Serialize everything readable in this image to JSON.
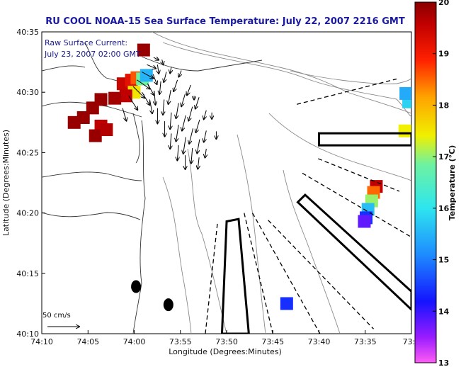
{
  "chart_data": {
    "type": "heatmap",
    "title": "RU COOL  NOAA-15  Sea Surface Temperature:  July 22, 2007 2216 GMT",
    "title_color": "#1a1aa0",
    "xlabel": "Longitude (Degrees:Minutes)",
    "ylabel": "Latitude (Degrees:Minutes)",
    "xlim": [
      -74.1667,
      -73.5
    ],
    "ylim": [
      40.1667,
      40.5833
    ],
    "x_ticks": [
      {
        "value": -74.1667,
        "label": "74:10"
      },
      {
        "value": -74.0833,
        "label": "74:05"
      },
      {
        "value": -74.0,
        "label": "74:00"
      },
      {
        "value": -73.9167,
        "label": "73:55"
      },
      {
        "value": -73.8333,
        "label": "73:50"
      },
      {
        "value": -73.75,
        "label": "73:45"
      },
      {
        "value": -73.6667,
        "label": "73:40"
      },
      {
        "value": -73.5833,
        "label": "73:35"
      },
      {
        "value": -73.5,
        "label": "73:3"
      }
    ],
    "y_ticks": [
      {
        "value": 40.1667,
        "label": "40:10"
      },
      {
        "value": 40.25,
        "label": "40:15"
      },
      {
        "value": 40.3333,
        "label": "40:20"
      },
      {
        "value": 40.4167,
        "label": "40:25"
      },
      {
        "value": 40.5,
        "label": "40:30"
      },
      {
        "value": 40.5833,
        "label": "40:35"
      }
    ],
    "annotations": [
      "Raw Surface Current:",
      "July 23, 2007 02:00 GMT"
    ],
    "scale_label": "50 cm/s",
    "colorbar": {
      "label": "Temperature (°C)",
      "range": [
        13,
        20
      ],
      "ticks": [
        "13",
        "14",
        "15",
        "16",
        "17",
        "18",
        "19",
        "20"
      ]
    },
    "sst_patches": [
      {
        "lon": -74.02,
        "lat": 40.5117,
        "temp": 19.5
      },
      {
        "lon": -74.005,
        "lat": 40.5167,
        "temp": 19.2
      },
      {
        "lon": -73.995,
        "lat": 40.52,
        "temp": 18.6
      },
      {
        "lon": -73.985,
        "lat": 40.5183,
        "temp": 16.8
      },
      {
        "lon": -73.978,
        "lat": 40.5233,
        "temp": 15.5
      },
      {
        "lon": -74.0,
        "lat": 40.5,
        "temp": 17.5
      },
      {
        "lon": -74.015,
        "lat": 40.495,
        "temp": 19.6
      },
      {
        "lon": -74.035,
        "lat": 40.4917,
        "temp": 19.8
      },
      {
        "lon": -74.06,
        "lat": 40.49,
        "temp": 19.9
      },
      {
        "lon": -74.075,
        "lat": 40.4783,
        "temp": 19.9
      },
      {
        "lon": -74.0917,
        "lat": 40.465,
        "temp": 19.9
      },
      {
        "lon": -74.1083,
        "lat": 40.4583,
        "temp": 19.9
      },
      {
        "lon": -74.06,
        "lat": 40.4533,
        "temp": 19.6
      },
      {
        "lon": -74.07,
        "lat": 40.44,
        "temp": 19.9
      },
      {
        "lon": -74.05,
        "lat": 40.4483,
        "temp": 19.7
      },
      {
        "lon": -73.983,
        "lat": 40.5583,
        "temp": 19.9
      },
      {
        "lon": -73.505,
        "lat": 40.4867,
        "temp": 15.8
      },
      {
        "lon": -73.51,
        "lat": 40.4983,
        "temp": 15.4
      },
      {
        "lon": -73.5117,
        "lat": 40.4467,
        "temp": 17.4
      },
      {
        "lon": -73.5633,
        "lat": 40.37,
        "temp": 19.6
      },
      {
        "lon": -73.5683,
        "lat": 40.3617,
        "temp": 18.5
      },
      {
        "lon": -73.5717,
        "lat": 40.35,
        "temp": 17.0
      },
      {
        "lon": -73.5783,
        "lat": 40.3383,
        "temp": 15.6
      },
      {
        "lon": -73.5817,
        "lat": 40.3267,
        "temp": 14.4
      },
      {
        "lon": -73.585,
        "lat": 40.3217,
        "temp": 13.8
      },
      {
        "lon": -73.725,
        "lat": 40.2083,
        "temp": 14.4
      }
    ],
    "current_vectors": [
      {
        "lon": -74.021,
        "lat": 40.478,
        "u": 6,
        "v": 20
      },
      {
        "lon": -74.01,
        "lat": 40.495,
        "u": 14,
        "v": 22
      },
      {
        "lon": -74.002,
        "lat": 40.508,
        "u": 18,
        "v": 18
      },
      {
        "lon": -73.995,
        "lat": 40.517,
        "u": 20,
        "v": 14
      },
      {
        "lon": -73.986,
        "lat": 40.528,
        "u": 18,
        "v": 10
      },
      {
        "lon": -73.977,
        "lat": 40.538,
        "u": 14,
        "v": 6
      },
      {
        "lon": -73.986,
        "lat": 40.5,
        "u": 12,
        "v": 20
      },
      {
        "lon": -73.976,
        "lat": 40.512,
        "u": 10,
        "v": 18
      },
      {
        "lon": -73.966,
        "lat": 40.525,
        "u": 6,
        "v": 16
      },
      {
        "lon": -73.958,
        "lat": 40.538,
        "u": 2,
        "v": 14
      },
      {
        "lon": -73.972,
        "lat": 40.49,
        "u": 4,
        "v": 22
      },
      {
        "lon": -73.964,
        "lat": 40.502,
        "u": 2,
        "v": 22
      },
      {
        "lon": -73.952,
        "lat": 40.515,
        "u": -2,
        "v": 20
      },
      {
        "lon": -73.942,
        "lat": 40.528,
        "u": -4,
        "v": 16
      },
      {
        "lon": -73.958,
        "lat": 40.478,
        "u": 0,
        "v": 24
      },
      {
        "lon": -73.946,
        "lat": 40.49,
        "u": -2,
        "v": 24
      },
      {
        "lon": -73.934,
        "lat": 40.503,
        "u": -4,
        "v": 22
      },
      {
        "lon": -73.922,
        "lat": 40.517,
        "u": -6,
        "v": 18
      },
      {
        "lon": -73.945,
        "lat": 40.46,
        "u": 0,
        "v": 24
      },
      {
        "lon": -73.933,
        "lat": 40.472,
        "u": -2,
        "v": 26
      },
      {
        "lon": -73.92,
        "lat": 40.485,
        "u": -4,
        "v": 24
      },
      {
        "lon": -73.908,
        "lat": 40.498,
        "u": -6,
        "v": 20
      },
      {
        "lon": -73.898,
        "lat": 40.51,
        "u": -6,
        "v": 16
      },
      {
        "lon": -73.933,
        "lat": 40.443,
        "u": -2,
        "v": 24
      },
      {
        "lon": -73.92,
        "lat": 40.455,
        "u": -4,
        "v": 26
      },
      {
        "lon": -73.907,
        "lat": 40.468,
        "u": -6,
        "v": 24
      },
      {
        "lon": -73.895,
        "lat": 40.48,
        "u": -6,
        "v": 22
      },
      {
        "lon": -73.883,
        "lat": 40.493,
        "u": -6,
        "v": 18
      },
      {
        "lon": -73.92,
        "lat": 40.427,
        "u": -2,
        "v": 24
      },
      {
        "lon": -73.907,
        "lat": 40.438,
        "u": -4,
        "v": 26
      },
      {
        "lon": -73.894,
        "lat": 40.45,
        "u": -6,
        "v": 24
      },
      {
        "lon": -73.882,
        "lat": 40.462,
        "u": -6,
        "v": 20
      },
      {
        "lon": -73.87,
        "lat": 40.475,
        "u": -4,
        "v": 14
      },
      {
        "lon": -73.908,
        "lat": 40.413,
        "u": 0,
        "v": 22
      },
      {
        "lon": -73.895,
        "lat": 40.423,
        "u": -2,
        "v": 24
      },
      {
        "lon": -73.882,
        "lat": 40.435,
        "u": -4,
        "v": 22
      },
      {
        "lon": -73.87,
        "lat": 40.447,
        "u": -4,
        "v": 18
      },
      {
        "lon": -73.883,
        "lat": 40.41,
        "u": -2,
        "v": 18
      },
      {
        "lon": -73.87,
        "lat": 40.422,
        "u": -2,
        "v": 14
      },
      {
        "lon": -73.965,
        "lat": 40.548,
        "u": 8,
        "v": 4
      },
      {
        "lon": -73.95,
        "lat": 40.545,
        "u": 2,
        "v": 8
      },
      {
        "lon": -73.933,
        "lat": 40.535,
        "u": -2,
        "v": 10
      },
      {
        "lon": -73.915,
        "lat": 40.53,
        "u": -4,
        "v": 10
      },
      {
        "lon": -73.892,
        "lat": 40.495,
        "u": 0,
        "v": 6
      },
      {
        "lon": -73.86,
        "lat": 40.472,
        "u": 0,
        "v": 10
      },
      {
        "lon": -73.852,
        "lat": 40.446,
        "u": 0,
        "v": 12
      }
    ],
    "geometry": {
      "lanes": [
        {
          "name": "upper-lane",
          "points": [
            [
              -73.6667,
              40.4433
            ],
            [
              -73.5,
              40.4433
            ],
            [
              -73.5,
              40.4267
            ],
            [
              -73.6667,
              40.4267
            ]
          ]
        },
        {
          "name": "middle-lane",
          "points": [
            [
              -73.6917,
              40.3583
            ],
            [
              -73.5,
              40.225
            ],
            [
              -73.5,
              40.2
            ],
            [
              -73.705,
              40.3483
            ]
          ]
        },
        {
          "name": "lower-lane",
          "points": [
            [
              -73.8417,
              40.1667
            ],
            [
              -73.8333,
              40.3217
            ],
            [
              -73.8117,
              40.325
            ],
            [
              -73.7933,
              40.1667
            ]
          ]
        }
      ],
      "dashed_lines": [
        [
          [
            -73.7067,
            40.4833
          ],
          [
            -73.5267,
            40.5183
          ]
        ],
        [
          [
            -73.6683,
            40.4083
          ],
          [
            -73.5217,
            40.3633
          ]
        ],
        [
          [
            -73.6967,
            40.3883
          ],
          [
            -73.5,
            40.3
          ]
        ],
        [
          [
            -73.7583,
            40.3233
          ],
          [
            -73.5683,
            40.1733
          ]
        ],
        [
          [
            -73.7867,
            40.3333
          ],
          [
            -73.665,
            40.1667
          ]
        ],
        [
          [
            -73.85,
            40.3183
          ],
          [
            -73.8717,
            40.1667
          ]
        ],
        [
          [
            -73.8017,
            40.3333
          ],
          [
            -73.75,
            40.1667
          ]
        ]
      ],
      "blobs": [
        {
          "lon": -73.9967,
          "lat": 40.2317
        },
        {
          "lon": -73.9383,
          "lat": 40.2067
        }
      ]
    }
  }
}
